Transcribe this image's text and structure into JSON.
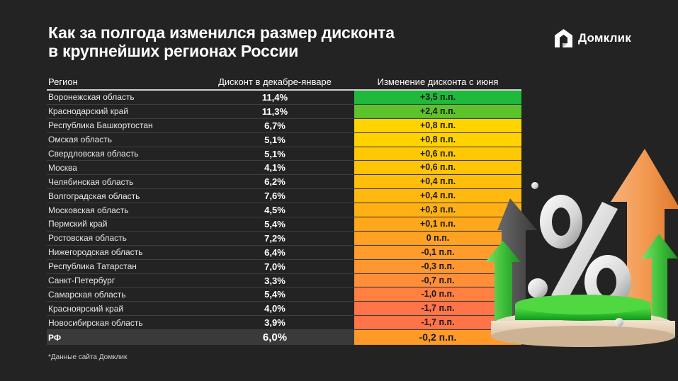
{
  "header": {
    "title_line1": "Как за полгода изменился размер дисконта",
    "title_line2": "в крупнейших регионах России",
    "logo_text": "Домклик"
  },
  "table": {
    "columns": [
      "Регион",
      "Дисконт в декабре-январе",
      "Изменение дисконта с июня"
    ],
    "rows": [
      {
        "region": "Воронежская область",
        "discount": "11,4%",
        "change": "+3,5 п.п.",
        "color": "#1fba3c"
      },
      {
        "region": "Краснодарский край",
        "discount": "11,3%",
        "change": "+2,4 п.п.",
        "color": "#5cc42a"
      },
      {
        "region": "Республика Башкортостан",
        "discount": "6,7%",
        "change": "+0,8 п.п.",
        "color": "#ffd400"
      },
      {
        "region": "Омская область",
        "discount": "5,1%",
        "change": "+0,8 п.п.",
        "color": "#ffd200"
      },
      {
        "region": "Свердловская область",
        "discount": "5,1%",
        "change": "+0,6 п.п.",
        "color": "#ffc805"
      },
      {
        "region": "Москва",
        "discount": "4,1%",
        "change": "+0,6 п.п.",
        "color": "#ffc505"
      },
      {
        "region": "Челябинская область",
        "discount": "6,2%",
        "change": "+0,4 п.п.",
        "color": "#ffbe0a"
      },
      {
        "region": "Волгоградская область",
        "discount": "7,6%",
        "change": "+0,4 п.п.",
        "color": "#ffb80f"
      },
      {
        "region": "Московская область",
        "discount": "4,5%",
        "change": "+0,3 п.п.",
        "color": "#ffb014"
      },
      {
        "region": "Пермский край",
        "discount": "5,4%",
        "change": "+0,1 п.п.",
        "color": "#ffa81c"
      },
      {
        "region": "Ростовская область",
        "discount": "7,2%",
        "change": "0 п.п.",
        "color": "#ffa224"
      },
      {
        "region": "Нижегородская область",
        "discount": "6,4%",
        "change": "-0,1 п.п.",
        "color": "#ff9c2c"
      },
      {
        "region": "Республика Татарстан",
        "discount": "7,0%",
        "change": "-0,3 п.п.",
        "color": "#ff9630"
      },
      {
        "region": "Санкт-Петербург",
        "discount": "3,3%",
        "change": "-0,7 п.п.",
        "color": "#ff8e38"
      },
      {
        "region": "Самарская область",
        "discount": "5,4%",
        "change": "-1,0 п.п.",
        "color": "#ff8040"
      },
      {
        "region": "Красноярский край",
        "discount": "4,0%",
        "change": "-1,7 п.п.",
        "color": "#ff7448"
      },
      {
        "region": "Новосибирская область",
        "discount": "3,9%",
        "change": "-1,7 п.п.",
        "color": "#ff7348"
      }
    ],
    "total": {
      "region": "РФ",
      "discount": "6,0%",
      "change": "-0,2 п.п.",
      "color": "#ff9a28"
    }
  },
  "footnote": "*Данные сайта Домклик",
  "chart_data": {
    "type": "table",
    "title": "Как за полгода изменился размер дисконта в крупнейших регионах России",
    "columns": [
      "Регион",
      "Дисконт в декабре-январе",
      "Изменение дисконта с июня"
    ],
    "categories": [
      "Воронежская область",
      "Краснодарский край",
      "Республика Башкортостан",
      "Омская область",
      "Свердловская область",
      "Москва",
      "Челябинская область",
      "Волгоградская область",
      "Московская область",
      "Пермский край",
      "Ростовская область",
      "Нижегородская область",
      "Республика Татарстан",
      "Санкт-Петербург",
      "Самарская область",
      "Красноярский край",
      "Новосибирская область",
      "РФ"
    ],
    "series": [
      {
        "name": "Дисконт в декабре-январе, %",
        "values": [
          11.4,
          11.3,
          6.7,
          5.1,
          5.1,
          4.1,
          6.2,
          7.6,
          4.5,
          5.4,
          7.2,
          6.4,
          7.0,
          3.3,
          5.4,
          4.0,
          3.9,
          6.0
        ]
      },
      {
        "name": "Изменение дисконта с июня, п.п.",
        "values": [
          3.5,
          2.4,
          0.8,
          0.8,
          0.6,
          0.6,
          0.4,
          0.4,
          0.3,
          0.1,
          0,
          -0.1,
          -0.3,
          -0.7,
          -1.0,
          -1.7,
          -1.7,
          -0.2
        ]
      }
    ],
    "footnote": "*Данные сайта Домклик"
  }
}
